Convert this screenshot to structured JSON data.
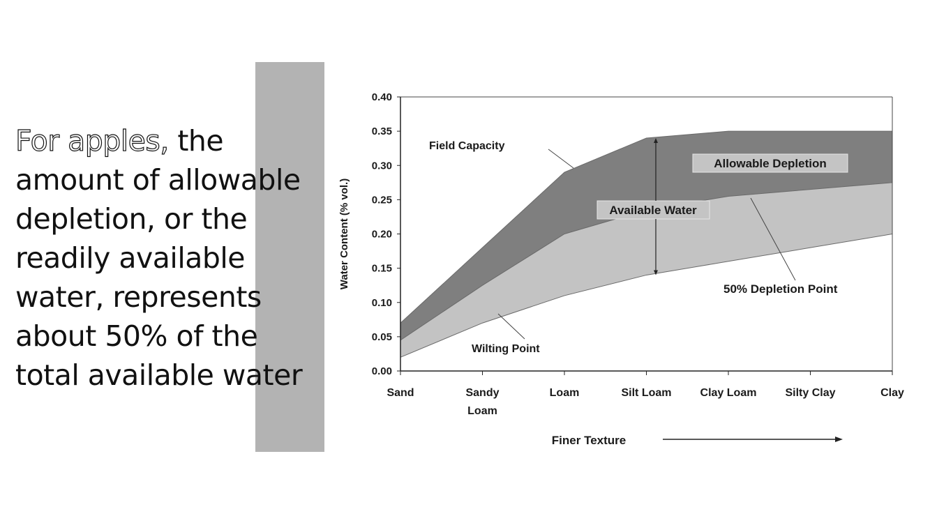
{
  "slide": {
    "highlight": "For apples,",
    "lines": [
      " the",
      "amount of allowable",
      "depletion, or the",
      "readily available",
      "water, represents",
      "about 50% of the",
      "total available water"
    ]
  },
  "chart_data": {
    "type": "area",
    "categories": [
      "Sand",
      "Sandy Loam",
      "Loam",
      "Silt Loam",
      "Clay Loam",
      "Silty Clay",
      "Clay"
    ],
    "series": [
      {
        "name": "Field Capacity",
        "values": [
          0.07,
          0.18,
          0.29,
          0.34,
          0.35,
          0.35,
          0.35
        ]
      },
      {
        "name": "50% Depletion Point",
        "values": [
          0.045,
          0.125,
          0.2,
          0.235,
          0.255,
          0.265,
          0.275
        ]
      },
      {
        "name": "Wilting Point",
        "values": [
          0.02,
          0.07,
          0.11,
          0.14,
          0.16,
          0.18,
          0.2
        ]
      }
    ],
    "ylabel": "Water Content (% vol.)",
    "xlabel": "Finer Texture",
    "ylim": [
      0,
      0.4
    ],
    "yticks": [
      "0.00",
      "0.05",
      "0.10",
      "0.15",
      "0.20",
      "0.25",
      "0.30",
      "0.35",
      "0.40"
    ],
    "annotations": {
      "field_capacity": "Field Capacity",
      "allowable_depletion": "Allowable Depletion",
      "available_water": "Available Water",
      "depletion_point": "50% Depletion Point",
      "wilting_point": "Wilting Point"
    },
    "colors": {
      "depletion_band": "#7f7f7f",
      "lower_band": "#c3c3c3"
    }
  }
}
